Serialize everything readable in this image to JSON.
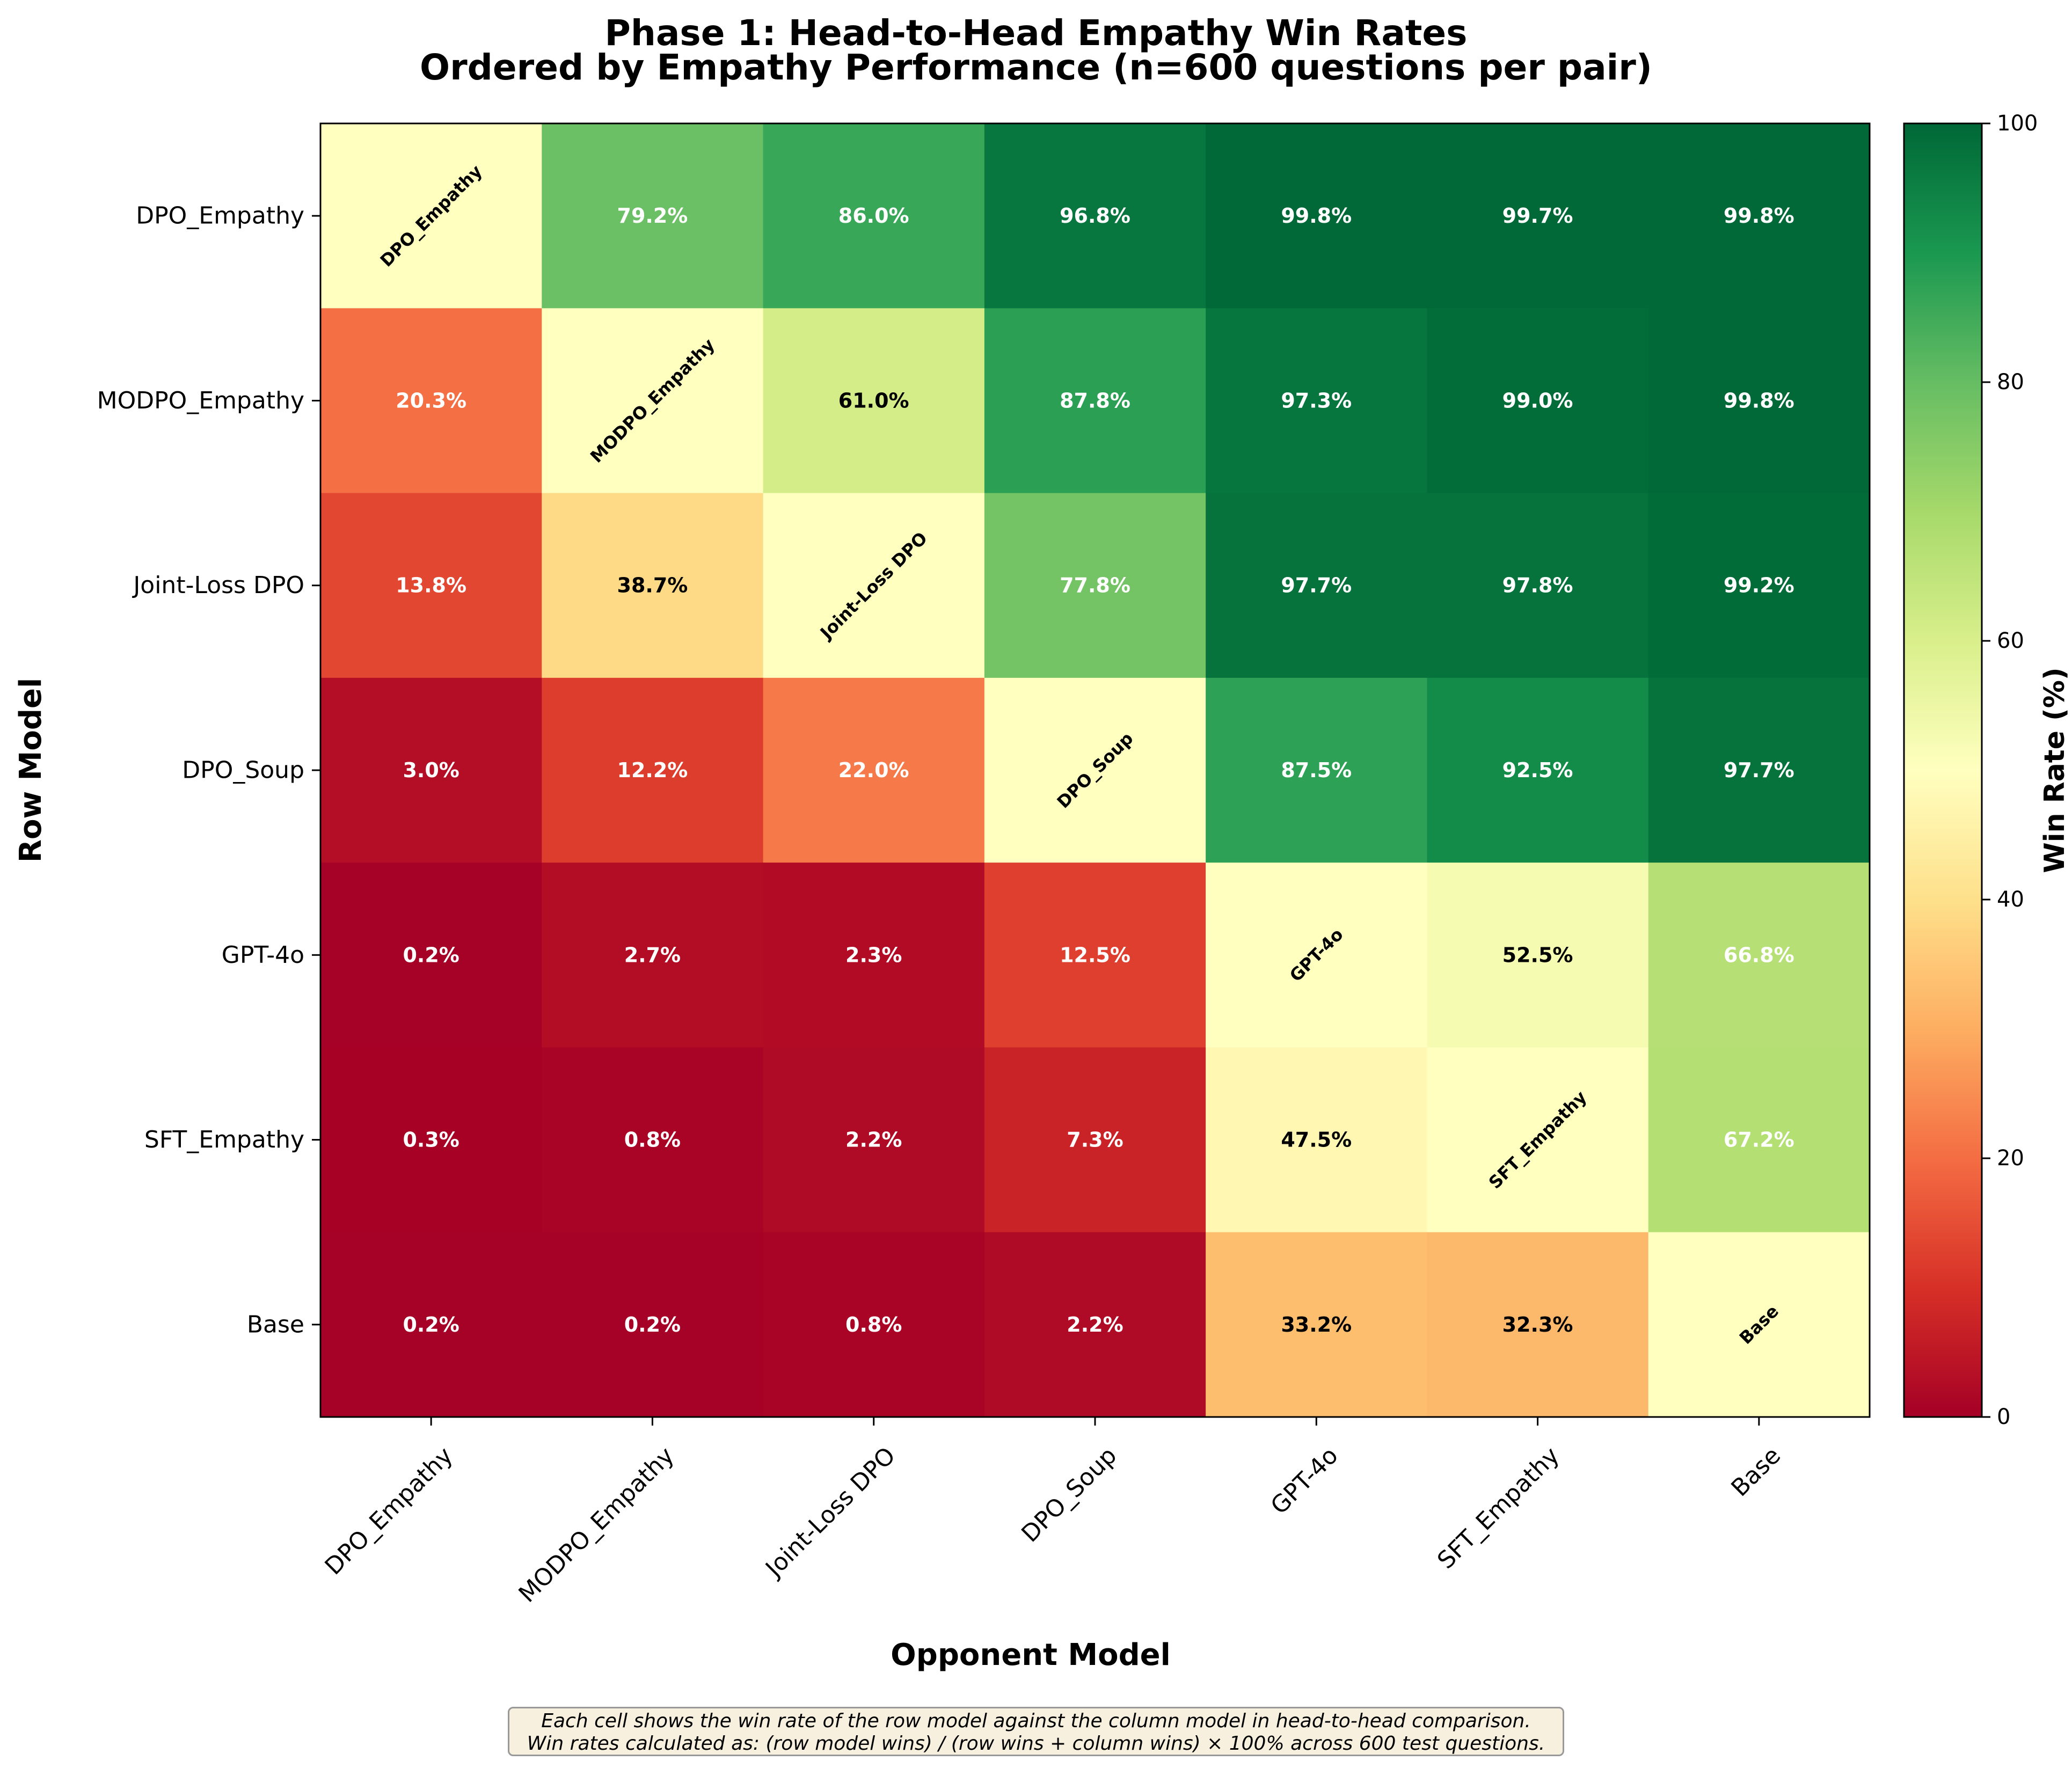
{
  "chart_data": {
    "type": "heatmap",
    "title": "Phase 1: Head-to-Head Empathy Win Rates",
    "subtitle": "Ordered by Empathy Performance (n=600 questions per pair)",
    "xlabel": "Opponent Model",
    "ylabel": "Row Model",
    "rows": [
      "DPO_Empathy",
      "MODPO_Empathy",
      "Joint-Loss DPO",
      "DPO_Soup",
      "GPT-4o",
      "SFT_Empathy",
      "Base"
    ],
    "columns": [
      "DPO_Empathy",
      "MODPO_Empathy",
      "Joint-Loss DPO",
      "DPO_Soup",
      "GPT-4o",
      "SFT_Empathy",
      "Base"
    ],
    "values": [
      [
        null,
        79.2,
        86.0,
        96.8,
        99.8,
        99.7,
        99.8
      ],
      [
        20.3,
        null,
        61.0,
        87.8,
        97.3,
        99.0,
        99.8
      ],
      [
        13.8,
        38.7,
        null,
        77.8,
        97.7,
        97.8,
        99.2
      ],
      [
        3.0,
        12.2,
        22.0,
        null,
        87.5,
        92.5,
        97.7
      ],
      [
        0.2,
        2.7,
        2.3,
        12.5,
        null,
        52.5,
        66.8
      ],
      [
        0.3,
        0.8,
        2.2,
        7.3,
        47.5,
        null,
        67.2
      ],
      [
        0.2,
        0.2,
        0.8,
        2.2,
        33.2,
        32.3,
        null
      ]
    ],
    "cell_labels": [
      [
        "DPO_Empathy",
        "79.2%",
        "86.0%",
        "96.8%",
        "99.8%",
        "99.7%",
        "99.8%"
      ],
      [
        "20.3%",
        "MODPO_Empathy",
        "61.0%",
        "87.8%",
        "97.3%",
        "99.0%",
        "99.8%"
      ],
      [
        "13.8%",
        "38.7%",
        "Joint-Loss DPO",
        "77.8%",
        "97.7%",
        "97.8%",
        "99.2%"
      ],
      [
        "3.0%",
        "12.2%",
        "22.0%",
        "DPO_Soup",
        "87.5%",
        "92.5%",
        "97.7%"
      ],
      [
        "0.2%",
        "2.7%",
        "2.3%",
        "12.5%",
        "GPT-4o",
        "52.5%",
        "66.8%"
      ],
      [
        "0.3%",
        "0.8%",
        "2.2%",
        "7.3%",
        "47.5%",
        "SFT_Empathy",
        "67.2%"
      ],
      [
        "0.2%",
        "0.2%",
        "0.8%",
        "2.2%",
        "33.2%",
        "32.3%",
        "Base"
      ]
    ],
    "diagonal_value": 50,
    "colormap": "RdYlGn",
    "colorbar": {
      "label": "Win Rate (%)",
      "range": [
        0,
        100
      ],
      "ticks": [
        "0",
        "20",
        "40",
        "60",
        "80",
        "100"
      ],
      "tick_values": [
        0,
        20,
        40,
        60,
        80,
        100
      ]
    }
  },
  "footnote": {
    "line1": "Each cell shows the win rate of the row model against the column model in head-to-head comparison.",
    "line2": "Win rates calculated as: (row model wins) / (row wins + column wins) × 100% across 600 test questions."
  }
}
